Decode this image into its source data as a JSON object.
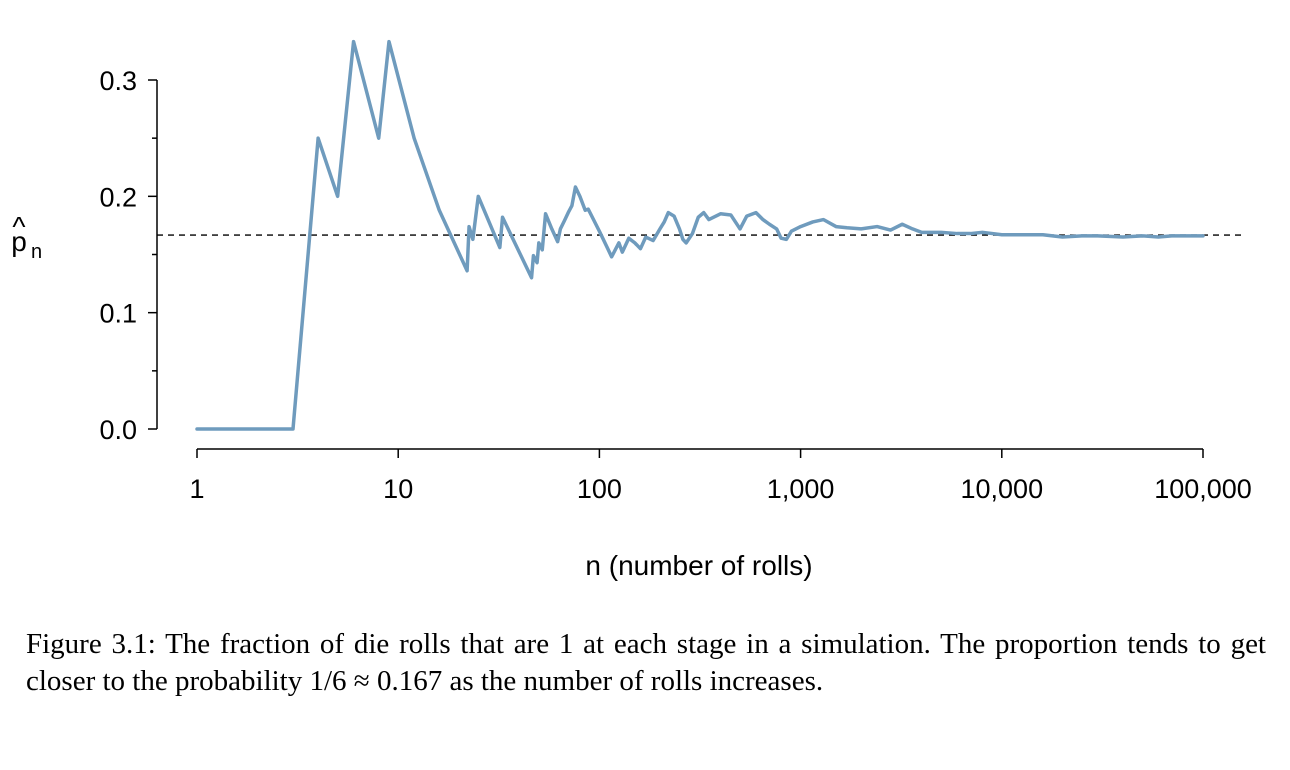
{
  "chart_data": {
    "type": "line",
    "title": "",
    "xlabel": "n (number of rolls)",
    "ylabel_base": "p",
    "ylabel_hat": "^",
    "ylabel_sub": "n",
    "x_scale": "log",
    "xlim": [
      1,
      100000
    ],
    "ylim": [
      0,
      0.3
    ],
    "x_ticks": [
      1,
      10,
      100,
      1000,
      10000,
      100000
    ],
    "x_tick_labels": [
      "1",
      "10",
      "100",
      "1,000",
      "10,000",
      "100,000"
    ],
    "y_ticks": [
      0,
      0.1,
      0.2,
      0.3
    ],
    "y_tick_labels": [
      "0.0",
      "0.1",
      "0.2",
      "0.3"
    ],
    "y_minor_ticks": [
      0.05,
      0.15,
      0.25
    ],
    "reference_line": {
      "y": 0.1667,
      "style": "dashed",
      "color": "#000000"
    },
    "grid": false,
    "series": [
      {
        "color": "#6f9bbd",
        "points": [
          [
            1,
            0.0
          ],
          [
            3,
            0.0
          ],
          [
            4,
            0.25
          ],
          [
            5,
            0.2
          ],
          [
            6,
            0.333
          ],
          [
            8,
            0.25
          ],
          [
            9,
            0.333
          ],
          [
            12,
            0.25
          ],
          [
            16,
            0.188
          ],
          [
            22,
            0.136
          ],
          [
            22.5,
            0.174
          ],
          [
            23.5,
            0.163
          ],
          [
            25,
            0.2
          ],
          [
            32,
            0.156
          ],
          [
            33,
            0.182
          ],
          [
            46,
            0.13
          ],
          [
            47,
            0.149
          ],
          [
            49,
            0.143
          ],
          [
            50,
            0.16
          ],
          [
            52,
            0.154
          ],
          [
            54,
            0.185
          ],
          [
            58,
            0.172
          ],
          [
            62,
            0.161
          ],
          [
            64,
            0.172
          ],
          [
            67,
            0.179
          ],
          [
            70,
            0.186
          ],
          [
            73,
            0.192
          ],
          [
            76,
            0.208
          ],
          [
            80,
            0.2
          ],
          [
            85,
            0.188
          ],
          [
            88,
            0.189
          ],
          [
            100,
            0.17
          ],
          [
            110,
            0.155
          ],
          [
            115,
            0.148
          ],
          [
            125,
            0.16
          ],
          [
            130,
            0.152
          ],
          [
            140,
            0.164
          ],
          [
            150,
            0.16
          ],
          [
            160,
            0.155
          ],
          [
            170,
            0.165
          ],
          [
            185,
            0.162
          ],
          [
            200,
            0.172
          ],
          [
            210,
            0.178
          ],
          [
            220,
            0.186
          ],
          [
            235,
            0.183
          ],
          [
            250,
            0.172
          ],
          [
            260,
            0.163
          ],
          [
            270,
            0.16
          ],
          [
            290,
            0.168
          ],
          [
            310,
            0.182
          ],
          [
            330,
            0.186
          ],
          [
            350,
            0.18
          ],
          [
            400,
            0.185
          ],
          [
            450,
            0.184
          ],
          [
            500,
            0.172
          ],
          [
            540,
            0.183
          ],
          [
            600,
            0.186
          ],
          [
            650,
            0.18
          ],
          [
            700,
            0.176
          ],
          [
            760,
            0.172
          ],
          [
            800,
            0.164
          ],
          [
            850,
            0.163
          ],
          [
            900,
            0.17
          ],
          [
            1000,
            0.174
          ],
          [
            1150,
            0.178
          ],
          [
            1300,
            0.18
          ],
          [
            1500,
            0.174
          ],
          [
            1700,
            0.173
          ],
          [
            2000,
            0.172
          ],
          [
            2400,
            0.174
          ],
          [
            2800,
            0.171
          ],
          [
            3200,
            0.176
          ],
          [
            3600,
            0.172
          ],
          [
            4000,
            0.169
          ],
          [
            5000,
            0.169
          ],
          [
            6000,
            0.168
          ],
          [
            7000,
            0.168
          ],
          [
            8000,
            0.169
          ],
          [
            9000,
            0.168
          ],
          [
            10000,
            0.167
          ],
          [
            13000,
            0.167
          ],
          [
            16000,
            0.167
          ],
          [
            20000,
            0.165
          ],
          [
            25000,
            0.166
          ],
          [
            30000,
            0.166
          ],
          [
            40000,
            0.165
          ],
          [
            50000,
            0.166
          ],
          [
            60000,
            0.165
          ],
          [
            70000,
            0.166
          ],
          [
            85000,
            0.166
          ],
          [
            100000,
            0.166
          ]
        ]
      }
    ]
  },
  "caption": "Figure 3.1: The fraction of die rolls that are 1 at each stage in a simulation. The proportion tends to get closer to the probability 1/6 ≈ 0.167 as the number of rolls increases."
}
